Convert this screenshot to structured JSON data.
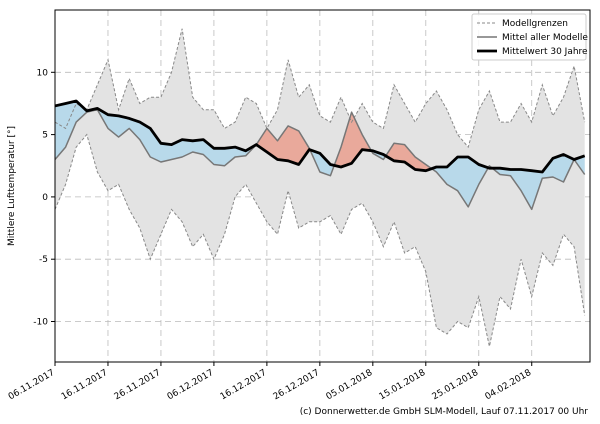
{
  "chart_data": {
    "type": "line",
    "ylabel": "Mittlere Lufttemperatur [°]",
    "annotation": "(c) Donnerwetter.de GmbH SLM-Modell, Lauf 07.11.2017 00 Uhr",
    "x": [
      "2017-11-06",
      "2017-11-08",
      "2017-11-10",
      "2017-11-12",
      "2017-11-14",
      "2017-11-16",
      "2017-11-18",
      "2017-11-20",
      "2017-11-22",
      "2017-11-24",
      "2017-11-26",
      "2017-11-28",
      "2017-11-30",
      "2017-12-02",
      "2017-12-04",
      "2017-12-06",
      "2017-12-08",
      "2017-12-10",
      "2017-12-12",
      "2017-12-14",
      "2017-12-16",
      "2017-12-18",
      "2017-12-20",
      "2017-12-22",
      "2017-12-24",
      "2017-12-26",
      "2017-12-28",
      "2017-12-30",
      "2018-01-01",
      "2018-01-03",
      "2018-01-05",
      "2018-01-07",
      "2018-01-09",
      "2018-01-11",
      "2018-01-13",
      "2018-01-15",
      "2018-01-17",
      "2018-01-19",
      "2018-01-21",
      "2018-01-23",
      "2018-01-25",
      "2018-01-27",
      "2018-01-29",
      "2018-01-31",
      "2018-02-02",
      "2018-02-04",
      "2018-02-06",
      "2018-02-08",
      "2018-02-10",
      "2018-02-12",
      "2018-02-14"
    ],
    "band": {
      "name": "Modellgrenzen",
      "color": "#888888",
      "fill": "#e3e3e3",
      "upper": [
        6.0,
        5.5,
        7.5,
        7.0,
        9.0,
        11.0,
        7.0,
        9.5,
        7.5,
        8.0,
        8.0,
        10.0,
        13.5,
        8.0,
        7.0,
        7.0,
        5.5,
        6.0,
        8.0,
        7.5,
        5.5,
        7.0,
        11.0,
        8.0,
        9.0,
        6.5,
        6.0,
        8.0,
        6.0,
        7.5,
        6.0,
        5.5,
        9.0,
        7.5,
        6.0,
        7.5,
        8.5,
        7.0,
        5.0,
        4.0,
        7.0,
        8.5,
        6.0,
        6.0,
        7.5,
        6.0,
        9.0,
        6.5,
        8.0,
        10.5,
        6.0
      ],
      "lower": [
        -1.0,
        1.0,
        4.0,
        5.0,
        2.0,
        0.5,
        1.0,
        -1.0,
        -2.5,
        -5.0,
        -3.0,
        -1.0,
        -2.0,
        -4.0,
        -3.0,
        -5.0,
        -3.0,
        0.0,
        1.0,
        -0.5,
        -2.0,
        -3.0,
        0.5,
        -2.5,
        -2.0,
        -2.0,
        -1.5,
        -3.0,
        -1.0,
        -0.5,
        -2.0,
        -4.0,
        -2.0,
        -4.5,
        -4.0,
        -6.0,
        -10.5,
        -11.0,
        -10.0,
        -10.5,
        -8.0,
        -12.0,
        -8.0,
        -9.0,
        -5.0,
        -8.0,
        -4.5,
        -5.5,
        -3.0,
        -4.0,
        -9.5
      ]
    },
    "series": [
      {
        "name": "Mittel aller Modelle",
        "color": "#777777",
        "width": 1.5,
        "values": [
          3.0,
          4.0,
          6.0,
          6.8,
          7.0,
          5.5,
          4.8,
          5.5,
          4.6,
          3.2,
          2.8,
          3.0,
          3.2,
          3.6,
          3.4,
          2.6,
          2.5,
          3.2,
          3.3,
          4.2,
          5.5,
          4.5,
          5.7,
          5.3,
          3.9,
          2.0,
          1.7,
          4.0,
          6.8,
          5.0,
          3.5,
          3.0,
          4.3,
          4.2,
          3.2,
          2.6,
          2.0,
          1.0,
          0.5,
          -0.8,
          1.0,
          2.5,
          1.8,
          1.7,
          0.5,
          -1.0,
          1.5,
          1.6,
          1.2,
          3.0,
          1.8
        ]
      },
      {
        "name": "Mittelwert 30 Jahre",
        "color": "#000000",
        "width": 2.8,
        "values": [
          7.3,
          7.5,
          7.7,
          6.9,
          7.1,
          6.6,
          6.5,
          6.3,
          6.0,
          5.5,
          4.3,
          4.2,
          4.6,
          4.5,
          4.6,
          3.9,
          3.9,
          4.0,
          3.7,
          4.2,
          3.6,
          3.0,
          2.9,
          2.6,
          3.8,
          3.5,
          2.6,
          2.4,
          2.7,
          3.8,
          3.7,
          3.4,
          2.9,
          2.8,
          2.2,
          2.1,
          2.4,
          2.4,
          3.2,
          3.2,
          2.6,
          2.3,
          2.3,
          2.2,
          2.2,
          2.1,
          2.0,
          3.1,
          3.4,
          3.0,
          3.3
        ]
      }
    ],
    "above_color": "#e9a99b",
    "below_color": "#b8d9ea",
    "xlim": [
      "2017-11-06",
      "2018-02-15"
    ],
    "xticks": [
      {
        "value": "2017-11-06",
        "label": "06.11.2017"
      },
      {
        "value": "2017-11-16",
        "label": "16.11.2017"
      },
      {
        "value": "2017-11-26",
        "label": "26.11.2017"
      },
      {
        "value": "2017-12-06",
        "label": "06.12.2017"
      },
      {
        "value": "2017-12-16",
        "label": "16.12.2017"
      },
      {
        "value": "2017-12-26",
        "label": "26.12.2017"
      },
      {
        "value": "2018-01-05",
        "label": "05.01.2018"
      },
      {
        "value": "2018-01-15",
        "label": "15.01.2018"
      },
      {
        "value": "2018-01-25",
        "label": "25.01.2018"
      },
      {
        "value": "2018-02-04",
        "label": "04.02.2018"
      }
    ],
    "ylim": [
      -13.25,
      15
    ],
    "yticks": [
      -10,
      -5,
      0,
      5,
      10
    ],
    "grid": true,
    "legend": "upper right"
  }
}
